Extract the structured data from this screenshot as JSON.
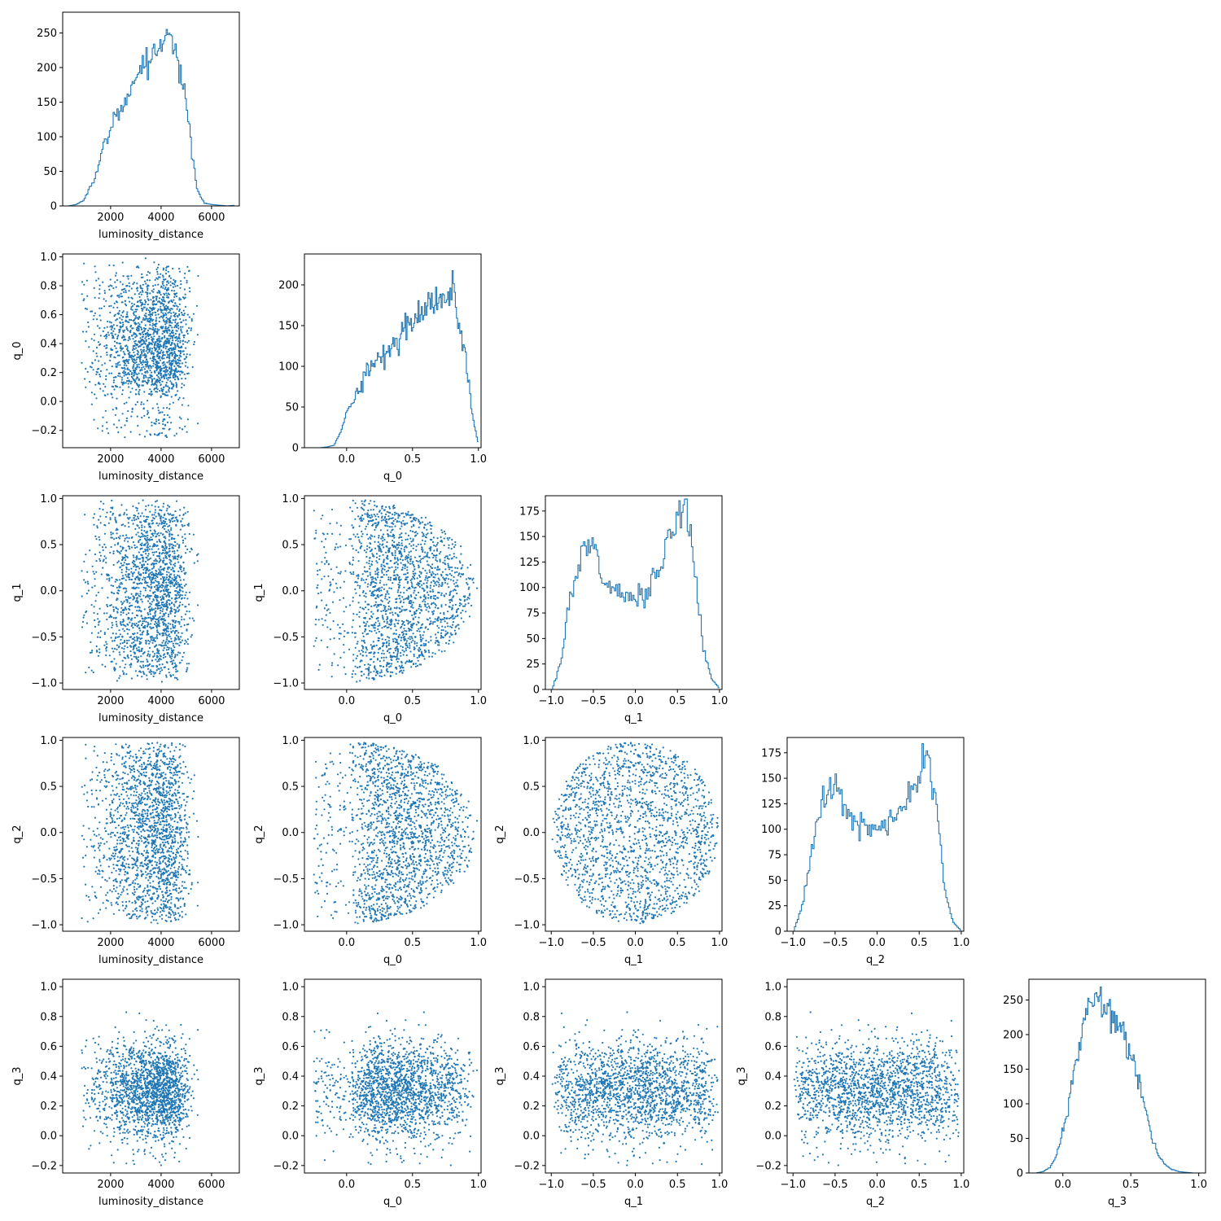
{
  "chart_data": {
    "type": "corner",
    "description_note": "",
    "parameters": [
      "luminosity_distance",
      "q_0",
      "q_1",
      "q_2",
      "q_3"
    ],
    "color": "#1f77b4",
    "axis_ranges": {
      "luminosity_distance": [
        100,
        7100
      ],
      "q_0": [
        -0.32,
        1.02
      ],
      "q_1": [
        -1.07,
        1.03
      ],
      "q_2": [
        -1.07,
        1.03
      ],
      "q_3": [
        -0.25,
        1.05
      ]
    },
    "ticks": {
      "luminosity_distance": {
        "values": [
          2000,
          4000,
          6000
        ],
        "labels": [
          "2000",
          "4000",
          "6000"
        ]
      },
      "q_0_x": {
        "values": [
          0,
          0.5,
          1.0
        ],
        "labels": [
          "0.0",
          "0.5",
          "1.0"
        ]
      },
      "q_0_y": {
        "values": [
          -0.2,
          0,
          0.2,
          0.4,
          0.6,
          0.8,
          1.0
        ],
        "labels": [
          "−0.2",
          "0.0",
          "0.2",
          "0.4",
          "0.6",
          "0.8",
          "1.0"
        ]
      },
      "q_1": {
        "values": [
          -1,
          -0.5,
          0,
          0.5,
          1
        ],
        "labels": [
          "−1.0",
          "−0.5",
          "0.0",
          "0.5",
          "1.0"
        ]
      },
      "q_2": {
        "values": [
          -1,
          -0.5,
          0,
          0.5,
          1
        ],
        "labels": [
          "−1.0",
          "−0.5",
          "0.0",
          "0.5",
          "1.0"
        ]
      },
      "q_3_x": {
        "values": [
          0,
          0.5,
          1.0
        ],
        "labels": [
          "0.0",
          "0.5",
          "1.0"
        ]
      },
      "q_3_y": {
        "values": [
          -0.2,
          0,
          0.2,
          0.4,
          0.6,
          0.8,
          1.0
        ],
        "labels": [
          "−0.2",
          "0.0",
          "0.2",
          "0.4",
          "0.6",
          "0.8",
          "1.0"
        ]
      }
    },
    "histograms": {
      "luminosity_distance": {
        "ylim": [
          0,
          280
        ],
        "yticks": [
          0,
          50,
          100,
          150,
          200,
          250
        ],
        "x": [
          300,
          600,
          900,
          1200,
          1500,
          1800,
          2100,
          2400,
          2700,
          3000,
          3300,
          3600,
          3900,
          4200,
          4500,
          4800,
          5100,
          5400,
          5700,
          6000,
          6300,
          6600,
          6900
        ],
        "counts": [
          0,
          2,
          8,
          30,
          60,
          100,
          125,
          145,
          160,
          190,
          205,
          220,
          240,
          250,
          225,
          190,
          110,
          25,
          4,
          2,
          1,
          0,
          1
        ]
      },
      "q_0": {
        "ylim": [
          0,
          238
        ],
        "yticks": [
          0,
          50,
          100,
          150,
          200
        ],
        "x": [
          -0.25,
          -0.2,
          -0.15,
          -0.1,
          -0.05,
          0.0,
          0.05,
          0.1,
          0.15,
          0.2,
          0.25,
          0.3,
          0.35,
          0.4,
          0.45,
          0.5,
          0.55,
          0.6,
          0.65,
          0.7,
          0.75,
          0.8,
          0.85,
          0.9,
          0.95,
          1.0
        ],
        "counts": [
          0,
          0,
          1,
          3,
          18,
          45,
          62,
          75,
          90,
          100,
          108,
          118,
          125,
          140,
          150,
          158,
          165,
          172,
          178,
          182,
          190,
          195,
          150,
          110,
          40,
          0
        ]
      },
      "q_1": {
        "ylim": [
          0,
          190
        ],
        "yticks": [
          0,
          25,
          50,
          75,
          100,
          125,
          150,
          175
        ],
        "x": [
          -1.0,
          -0.9,
          -0.8,
          -0.7,
          -0.6,
          -0.5,
          -0.4,
          -0.3,
          -0.2,
          -0.1,
          0.0,
          0.1,
          0.2,
          0.3,
          0.4,
          0.5,
          0.6,
          0.7,
          0.8,
          0.9,
          1.0
        ],
        "counts": [
          0,
          25,
          80,
          115,
          140,
          145,
          110,
          95,
          100,
          90,
          88,
          95,
          105,
          120,
          150,
          175,
          180,
          120,
          40,
          10,
          0
        ]
      },
      "q_2": {
        "ylim": [
          0,
          190
        ],
        "yticks": [
          0,
          25,
          50,
          75,
          100,
          125,
          150,
          175
        ],
        "x": [
          -1.0,
          -0.9,
          -0.8,
          -0.7,
          -0.6,
          -0.5,
          -0.4,
          -0.3,
          -0.2,
          -0.1,
          0.0,
          0.1,
          0.2,
          0.3,
          0.4,
          0.5,
          0.6,
          0.7,
          0.8,
          0.9,
          1.0
        ],
        "counts": [
          0,
          25,
          70,
          115,
          135,
          140,
          120,
          110,
          105,
          100,
          100,
          105,
          110,
          120,
          135,
          160,
          175,
          120,
          40,
          8,
          0
        ]
      },
      "q_3": {
        "ylim": [
          0,
          280
        ],
        "yticks": [
          0,
          50,
          100,
          150,
          200,
          250
        ],
        "x": [
          -0.2,
          -0.15,
          -0.1,
          -0.05,
          0.0,
          0.05,
          0.1,
          0.15,
          0.2,
          0.25,
          0.3,
          0.35,
          0.4,
          0.45,
          0.5,
          0.55,
          0.6,
          0.65,
          0.7,
          0.75,
          0.8,
          0.85,
          0.9,
          0.95,
          1.0
        ],
        "counts": [
          0,
          2,
          8,
          25,
          60,
          110,
          165,
          210,
          245,
          255,
          245,
          230,
          215,
          200,
          170,
          140,
          100,
          55,
          25,
          12,
          5,
          2,
          1,
          0,
          0
        ]
      }
    },
    "scatter": [
      {
        "x": "luminosity_distance",
        "y": "q_0",
        "n_points": 1800
      },
      {
        "x": "luminosity_distance",
        "y": "q_1",
        "n_points": 1800
      },
      {
        "x": "q_0",
        "y": "q_1",
        "n_points": 1800
      },
      {
        "x": "luminosity_distance",
        "y": "q_2",
        "n_points": 1800
      },
      {
        "x": "q_0",
        "y": "q_2",
        "n_points": 1800
      },
      {
        "x": "q_1",
        "y": "q_2",
        "n_points": 1800
      },
      {
        "x": "luminosity_distance",
        "y": "q_3",
        "n_points": 1800
      },
      {
        "x": "q_0",
        "y": "q_3",
        "n_points": 1800
      },
      {
        "x": "q_1",
        "y": "q_3",
        "n_points": 1800
      },
      {
        "x": "q_2",
        "y": "q_3",
        "n_points": 1800
      }
    ]
  },
  "labels": {
    "luminosity_distance": "luminosity_distance",
    "q_0": "q_0",
    "q_1": "q_1",
    "q_2": "q_2",
    "q_3": "q_3"
  }
}
